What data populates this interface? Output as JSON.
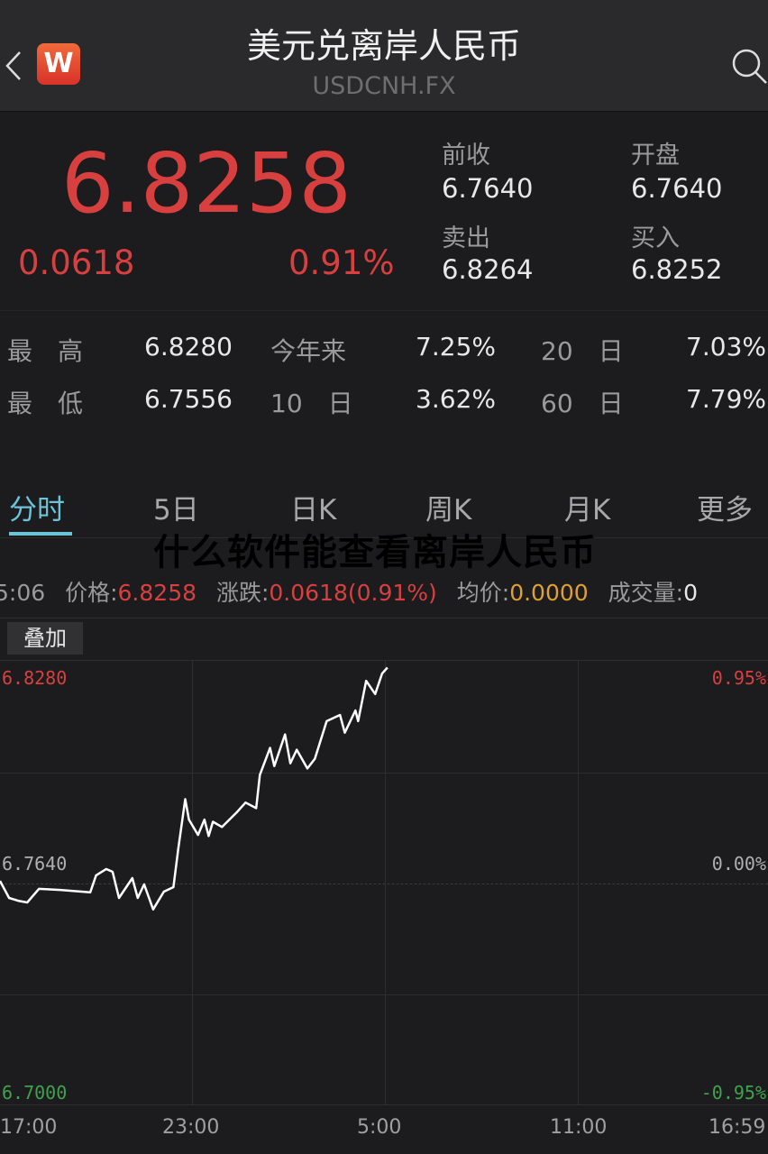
{
  "header": {
    "title": "美元兑离岸人民币",
    "subtitle": "USDCNH.FX",
    "logo_letter": "W",
    "back_icon": "chevron-left-icon",
    "search_icon": "search-icon"
  },
  "quote": {
    "price": "6.8258",
    "change": "0.0618",
    "change_pct": "0.91%",
    "prev_close_label": "前收",
    "prev_close": "6.7640",
    "open_label": "开盘",
    "open": "6.7640",
    "ask_label": "卖出",
    "ask": "6.8264",
    "bid_label": "买入",
    "bid": "6.8252"
  },
  "stats": [
    {
      "label": "最　高",
      "value": "6.8280"
    },
    {
      "label": "今年来",
      "value": "7.25%"
    },
    {
      "label": "20　日",
      "value": "7.03%"
    },
    {
      "label": "最　低",
      "value": "6.7556"
    },
    {
      "label": "10　日",
      "value": "3.62%"
    },
    {
      "label": "60　日",
      "value": "7.79%"
    }
  ],
  "tabs": [
    "分时",
    "5日",
    "日K",
    "周K",
    "月K",
    "更多"
  ],
  "active_tab": "分时",
  "watermark": "什么软件能查看离岸人民币",
  "info_bar": {
    "time": "5:06",
    "price_label": "价格:",
    "price": "6.8258",
    "change_label": "涨跌:",
    "change": "0.0618(0.91%)",
    "avg_label": "均价:",
    "avg": "0.0000",
    "volume_label": "成交量:",
    "volume": "0"
  },
  "overlay_button": "叠加",
  "colors": {
    "up": "#d8403f",
    "down": "#3fa34d",
    "avg": "#e0a030",
    "accent": "#6cc4d8"
  },
  "chart_data": {
    "type": "line",
    "y_left_ticks": [
      "6.8280",
      "6.7640",
      "6.7000"
    ],
    "y_right_ticks": [
      "0.95%",
      "0.00%",
      "-0.95%"
    ],
    "x_ticks": [
      "17:00",
      "23:00",
      "5:00",
      "11:00",
      "16:59"
    ],
    "ylim": [
      6.7,
      6.828
    ],
    "xlim": [
      "17:00",
      "16:59"
    ],
    "reference": 6.764,
    "grid": true,
    "series": [
      {
        "points": [
          [
            "17:00",
            6.7645
          ],
          [
            "17:17",
            6.7596
          ],
          [
            "17:34",
            6.7588
          ],
          [
            "17:51",
            6.7583
          ],
          [
            "18:13",
            6.7622
          ],
          [
            "18:53",
            6.7619
          ],
          [
            "19:49",
            6.7612
          ],
          [
            "20:00",
            6.7661
          ],
          [
            "20:19",
            6.7679
          ],
          [
            "20:31",
            6.7671
          ],
          [
            "20:43",
            6.7596
          ],
          [
            "21:08",
            6.7653
          ],
          [
            "21:18",
            6.7596
          ],
          [
            "21:30",
            6.7635
          ],
          [
            "21:47",
            6.7563
          ],
          [
            "22:07",
            6.7614
          ],
          [
            "22:25",
            6.7627
          ],
          [
            "22:34",
            6.7738
          ],
          [
            "22:47",
            6.788
          ],
          [
            "22:54",
            6.7821
          ],
          [
            "23:11",
            6.7777
          ],
          [
            "23:23",
            6.7821
          ],
          [
            "23:31",
            6.7774
          ],
          [
            "23:39",
            6.7815
          ],
          [
            "23:56",
            6.78
          ],
          [
            "00:23",
            6.7841
          ],
          [
            "00:40",
            6.787
          ],
          [
            "01:00",
            6.7854
          ],
          [
            "01:07",
            6.795
          ],
          [
            "01:26",
            6.8027
          ],
          [
            "01:34",
            6.7975
          ],
          [
            "01:54",
            6.8066
          ],
          [
            "02:04",
            6.7983
          ],
          [
            "02:16",
            6.8022
          ],
          [
            "02:36",
            6.7968
          ],
          [
            "02:50",
            6.7996
          ],
          [
            "03:12",
            6.8104
          ],
          [
            "03:37",
            6.8122
          ],
          [
            "03:46",
            6.8071
          ],
          [
            "04:06",
            6.8135
          ],
          [
            "04:11",
            6.8104
          ],
          [
            "04:26",
            6.822
          ],
          [
            "04:43",
            6.8182
          ],
          [
            "04:56",
            6.8241
          ],
          [
            "05:06",
            6.8258
          ]
        ]
      }
    ]
  }
}
